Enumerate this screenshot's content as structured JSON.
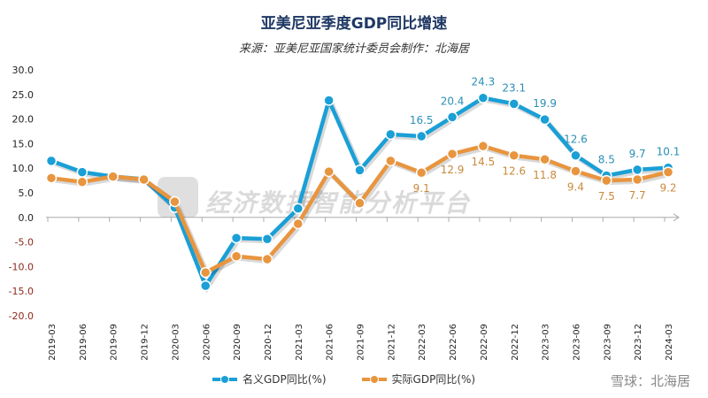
{
  "chart_data": {
    "type": "line",
    "title": "亚美尼亚季度GDP同比增速",
    "subtitle": "来源：亚美尼亚国家统计委员会制作：北海居",
    "categories": [
      "2019-03",
      "2019-06",
      "2019-09",
      "2019-12",
      "2020-03",
      "2020-06",
      "2020-09",
      "2020-12",
      "2021-03",
      "2021-06",
      "2021-09",
      "2021-12",
      "2022-03",
      "2022-06",
      "2022-09",
      "2022-12",
      "2023-03",
      "2023-06",
      "2023-09",
      "2023-12",
      "2024-03"
    ],
    "ylim": [
      -20,
      30
    ],
    "yticks": [
      "30.0",
      "25.0",
      "20.0",
      "15.0",
      "10.0",
      "5.0",
      "0.0",
      "-5.0",
      "-10.0",
      "-15.0",
      "-20.0"
    ],
    "series": [
      {
        "name": "名义GDP同比(%)",
        "color": "#1a9fd6",
        "values": [
          11.5,
          9.2,
          8.3,
          7.8,
          2.0,
          -13.9,
          -4.2,
          -4.4,
          1.8,
          23.8,
          9.6,
          16.9,
          16.5,
          20.4,
          24.3,
          23.1,
          19.9,
          12.6,
          8.5,
          9.7,
          10.1
        ],
        "labels": [
          null,
          null,
          null,
          null,
          null,
          null,
          null,
          null,
          null,
          null,
          null,
          null,
          "16.5",
          "20.4",
          "24.3",
          "23.1",
          "19.9",
          "12.6",
          "8.5",
          "9.7",
          "10.1"
        ]
      },
      {
        "name": "实际GDP同比(%)",
        "color": "#e8953f",
        "values": [
          8.0,
          7.2,
          8.3,
          7.7,
          3.2,
          -11.2,
          -7.9,
          -8.5,
          -1.3,
          9.3,
          2.9,
          11.5,
          9.1,
          12.9,
          14.5,
          12.6,
          11.8,
          9.4,
          7.5,
          7.7,
          9.2
        ],
        "labels": [
          null,
          null,
          null,
          null,
          null,
          null,
          null,
          null,
          null,
          null,
          null,
          null,
          "9.1",
          "12.9",
          "14.5",
          "12.6",
          "11.8",
          "9.4",
          "7.5",
          "7.7",
          "9.2"
        ]
      }
    ],
    "legend": "bottom",
    "grid": false
  },
  "watermark": "经济数据智能分析平台",
  "footer_watermark": "雪球：北海居"
}
